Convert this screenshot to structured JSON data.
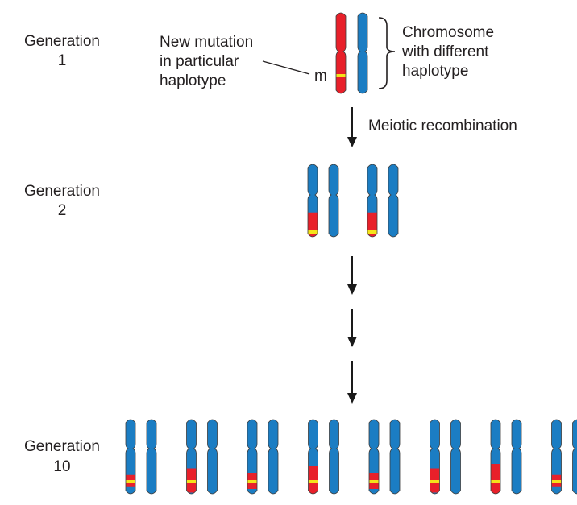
{
  "generations": [
    {
      "label_line1": "Generation",
      "label_line2": "1"
    },
    {
      "label_line1": "Generation",
      "label_line2": "2"
    },
    {
      "label_line1": "Generation",
      "label_line2": "10"
    }
  ],
  "mutation_label": [
    "New mutation",
    "in particular",
    "haplotype"
  ],
  "mutation_marker": "m",
  "haplotype_label": [
    "Chromosome",
    "with different",
    "haplotype"
  ],
  "step_label": "Meiotic recombination",
  "colors": {
    "mutant_haplotype": "#e8202a",
    "other_haplotype": "#1b7dc3",
    "mutation_band": "#f5e31a",
    "arrow": "#1a1a1a"
  },
  "icons": {
    "arrow": "down-arrow-icon",
    "brace": "right-brace-icon"
  },
  "generation_2_red_segment_fraction": [
    0.45,
    0.45
  ],
  "generation_10_red_segment_fraction": [
    0.15,
    0.3,
    0.2,
    0.35,
    0.2,
    0.3,
    0.4,
    0.15
  ]
}
